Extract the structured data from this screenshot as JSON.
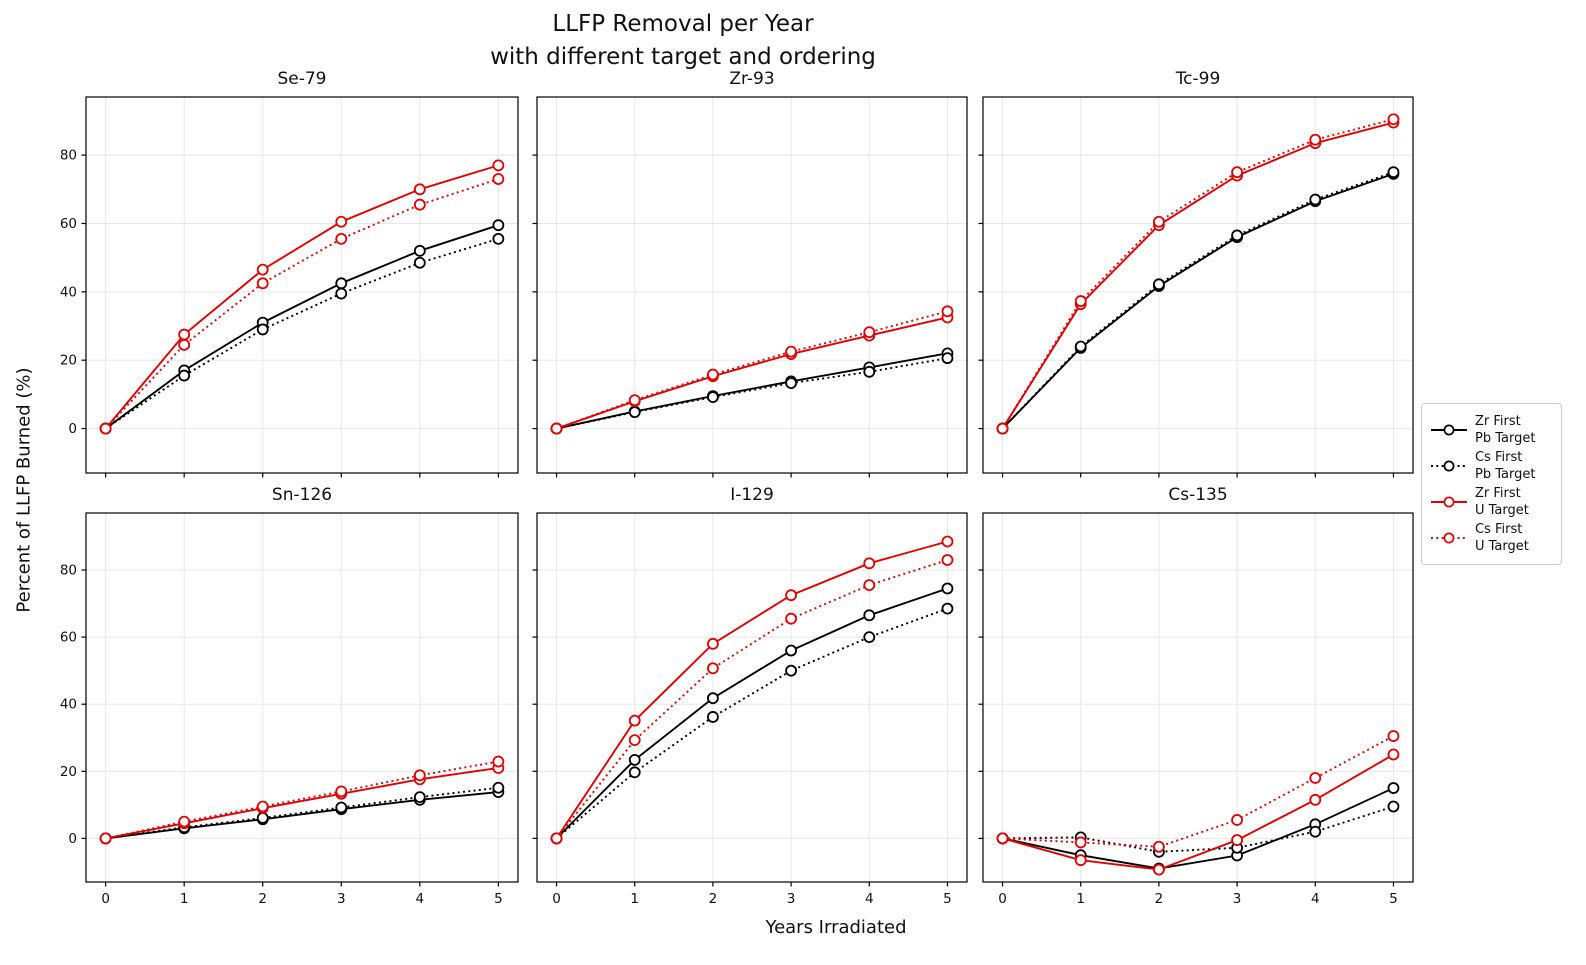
{
  "title": {
    "line1": "LLFP Removal per Year",
    "line2": "with different target and ordering"
  },
  "axes": {
    "x_label": "Years Irradiated",
    "y_label": "Percent of LLFP Burned (%)"
  },
  "colors": {
    "pb_line": "#000000",
    "u_line": "#e60000",
    "grid": "#e7e7e7",
    "spine": "#000000",
    "legend_border": "#cccccc",
    "marker_face": "#ffffff"
  },
  "legend": {
    "position": "center right",
    "entries": [
      {
        "lines": [
          "Zr First",
          "Pb Target"
        ],
        "color": "#000000",
        "dash": "solid"
      },
      {
        "lines": [
          "Cs First",
          "Pb Target"
        ],
        "color": "#000000",
        "dash": "dotted"
      },
      {
        "lines": [
          "Zr First",
          "U Target"
        ],
        "color": "#e60000",
        "dash": "solid"
      },
      {
        "lines": [
          "Cs First",
          "U Target"
        ],
        "color": "#e60000",
        "dash": "dotted"
      }
    ]
  },
  "series_styles": [
    {
      "name": "Zr First Pb Target",
      "color": "#000000",
      "dash": "solid"
    },
    {
      "name": "Cs First Pb Target",
      "color": "#000000",
      "dash": "dotted"
    },
    {
      "name": "Zr First U Target",
      "color": "#e60000",
      "dash": "solid"
    },
    {
      "name": "Cs First U Target",
      "color": "#e60000",
      "dash": "dotted"
    }
  ],
  "chart_data": [
    {
      "type": "line",
      "title": "Se-79",
      "x": [
        0,
        1,
        2,
        3,
        4,
        5
      ],
      "series": [
        {
          "name": "Zr First Pb Target",
          "values": [
            0,
            17.0,
            31.0,
            42.5,
            52.0,
            59.5
          ]
        },
        {
          "name": "Cs First Pb Target",
          "values": [
            0,
            15.5,
            29.0,
            39.5,
            48.5,
            55.5
          ]
        },
        {
          "name": "Zr First U Target",
          "values": [
            0,
            27.5,
            46.5,
            60.5,
            70.0,
            77.0
          ]
        },
        {
          "name": "Cs First U Target",
          "values": [
            0,
            24.5,
            42.5,
            55.5,
            65.5,
            73.0
          ]
        }
      ],
      "xlim": [
        -0.25,
        5.25
      ],
      "ylim": [
        -13,
        97
      ],
      "xticks": [
        0,
        1,
        2,
        3,
        4,
        5
      ],
      "yticks": [
        0,
        20,
        40,
        60,
        80
      ],
      "grid": true
    },
    {
      "type": "line",
      "title": "Zr-93",
      "x": [
        0,
        1,
        2,
        3,
        4,
        5
      ],
      "series": [
        {
          "name": "Zr First Pb Target",
          "values": [
            0,
            5.0,
            9.5,
            13.8,
            17.9,
            22.0
          ]
        },
        {
          "name": "Cs First Pb Target",
          "values": [
            0,
            4.8,
            9.2,
            13.3,
            16.6,
            20.6
          ]
        },
        {
          "name": "Zr First U Target",
          "values": [
            0,
            8.0,
            15.3,
            21.8,
            27.2,
            32.5
          ]
        },
        {
          "name": "Cs First U Target",
          "values": [
            0,
            8.3,
            15.8,
            22.5,
            28.2,
            34.3
          ]
        }
      ],
      "xlim": [
        -0.25,
        5.25
      ],
      "ylim": [
        -13,
        97
      ],
      "xticks": [
        0,
        1,
        2,
        3,
        4,
        5
      ],
      "yticks": [
        0,
        20,
        40,
        60,
        80
      ],
      "grid": true
    },
    {
      "type": "line",
      "title": "Tc-99",
      "x": [
        0,
        1,
        2,
        3,
        4,
        5
      ],
      "series": [
        {
          "name": "Zr First Pb Target",
          "values": [
            0,
            23.6,
            41.7,
            56.0,
            66.5,
            74.5
          ]
        },
        {
          "name": "Cs First Pb Target",
          "values": [
            0,
            24.0,
            42.2,
            56.5,
            67.0,
            75.0
          ]
        },
        {
          "name": "Zr First U Target",
          "values": [
            0,
            36.4,
            59.5,
            74.0,
            83.5,
            89.5
          ]
        },
        {
          "name": "Cs First U Target",
          "values": [
            0,
            37.3,
            60.5,
            75.0,
            84.5,
            90.5
          ]
        }
      ],
      "xlim": [
        -0.25,
        5.25
      ],
      "ylim": [
        -13,
        97
      ],
      "xticks": [
        0,
        1,
        2,
        3,
        4,
        5
      ],
      "yticks": [
        0,
        20,
        40,
        60,
        80
      ],
      "grid": true
    },
    {
      "type": "line",
      "title": "Sn-126",
      "x": [
        0,
        1,
        2,
        3,
        4,
        5
      ],
      "series": [
        {
          "name": "Zr First Pb Target",
          "values": [
            0,
            3.0,
            5.7,
            8.7,
            11.5,
            13.8
          ]
        },
        {
          "name": "Cs First Pb Target",
          "values": [
            0,
            3.3,
            6.1,
            9.2,
            12.3,
            15.1
          ]
        },
        {
          "name": "Zr First U Target",
          "values": [
            0,
            4.5,
            9.0,
            13.3,
            17.6,
            21.0
          ]
        },
        {
          "name": "Cs First U Target",
          "values": [
            0,
            5.0,
            9.5,
            14.0,
            18.8,
            22.9
          ]
        }
      ],
      "xlim": [
        -0.25,
        5.25
      ],
      "ylim": [
        -13,
        97
      ],
      "xticks": [
        0,
        1,
        2,
        3,
        4,
        5
      ],
      "yticks": [
        0,
        20,
        40,
        60,
        80
      ],
      "grid": true
    },
    {
      "type": "line",
      "title": "I-129",
      "x": [
        0,
        1,
        2,
        3,
        4,
        5
      ],
      "series": [
        {
          "name": "Zr First Pb Target",
          "values": [
            0,
            23.4,
            41.8,
            56.0,
            66.5,
            74.5
          ]
        },
        {
          "name": "Cs First Pb Target",
          "values": [
            0,
            19.7,
            36.2,
            50.0,
            60.0,
            68.5
          ]
        },
        {
          "name": "Zr First U Target",
          "values": [
            0,
            35.1,
            58.0,
            72.5,
            82.0,
            88.5
          ]
        },
        {
          "name": "Cs First U Target",
          "values": [
            0,
            29.3,
            50.7,
            65.5,
            75.5,
            83.0
          ]
        }
      ],
      "xlim": [
        -0.25,
        5.25
      ],
      "ylim": [
        -13,
        97
      ],
      "xticks": [
        0,
        1,
        2,
        3,
        4,
        5
      ],
      "yticks": [
        0,
        20,
        40,
        60,
        80
      ],
      "grid": true
    },
    {
      "type": "line",
      "title": "Cs-135",
      "x": [
        0,
        1,
        2,
        3,
        4,
        5
      ],
      "series": [
        {
          "name": "Zr First Pb Target",
          "values": [
            0,
            -5.0,
            -9.0,
            -5.1,
            4.2,
            15.0
          ]
        },
        {
          "name": "Cs First Pb Target",
          "values": [
            0,
            0.3,
            -4.0,
            -2.8,
            2.0,
            9.5
          ]
        },
        {
          "name": "Zr First U Target",
          "values": [
            0,
            -6.5,
            -9.3,
            -0.5,
            11.5,
            25.0
          ]
        },
        {
          "name": "Cs First U Target",
          "values": [
            0,
            -1.2,
            -2.5,
            5.5,
            18.0,
            30.5
          ]
        }
      ],
      "xlim": [
        -0.25,
        5.25
      ],
      "ylim": [
        -13,
        97
      ],
      "xticks": [
        0,
        1,
        2,
        3,
        4,
        5
      ],
      "yticks": [
        0,
        20,
        40,
        60,
        80
      ],
      "grid": true
    }
  ]
}
